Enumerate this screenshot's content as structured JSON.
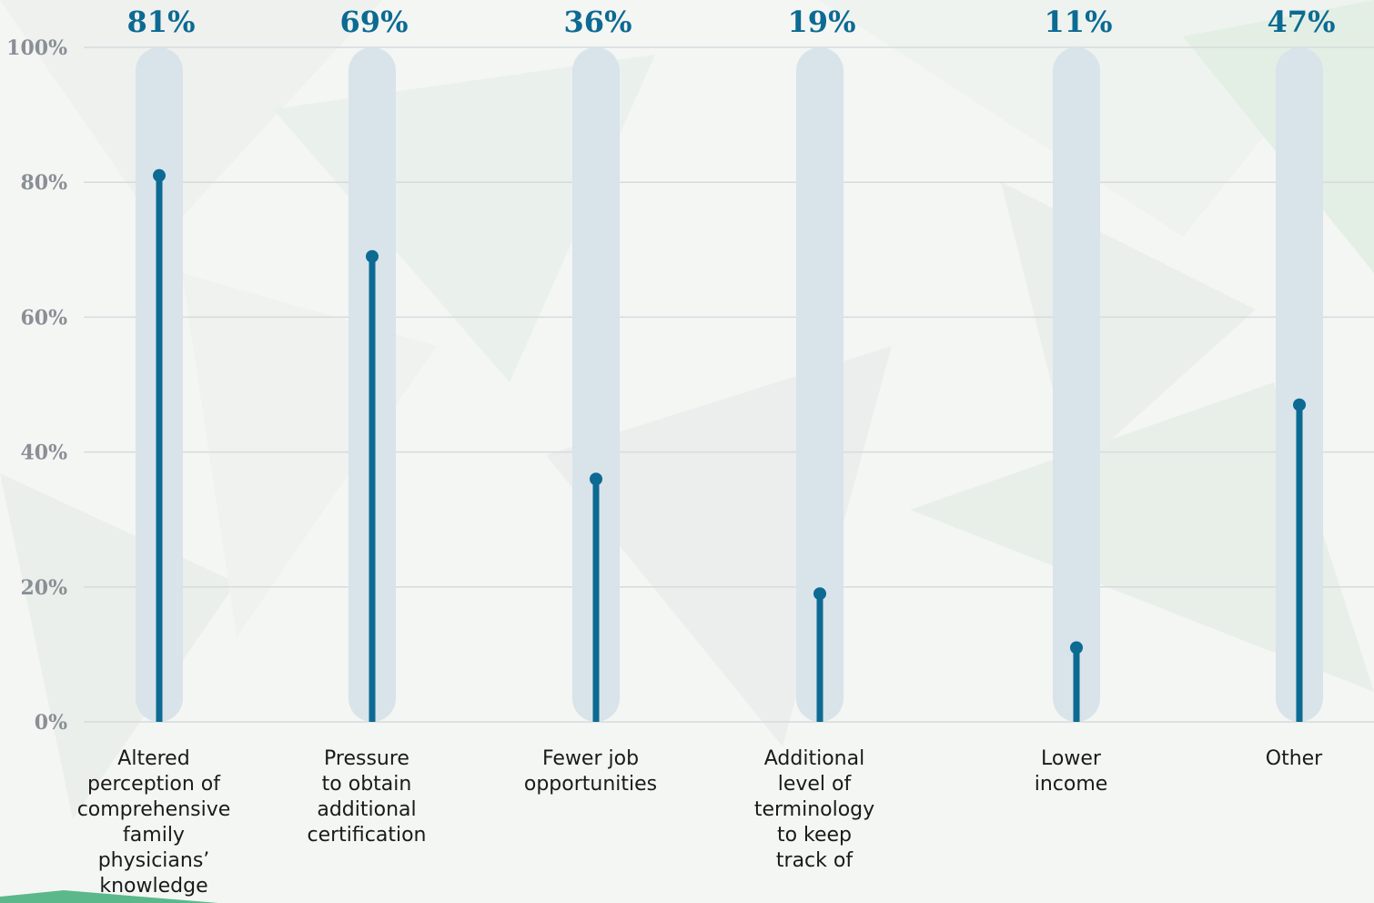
{
  "chart_data": {
    "type": "bar",
    "title": "",
    "xlabel": "",
    "ylabel": "",
    "ylim": [
      0,
      100
    ],
    "grid": true,
    "y_ticks": [
      "0%",
      "20%",
      "40%",
      "60%",
      "80%",
      "100%"
    ],
    "categories": [
      [
        "Altered",
        "perception of",
        "comprehensive",
        "family",
        "physicians’",
        "knowledge"
      ],
      [
        "Pressure",
        "to obtain",
        "additional",
        "certification"
      ],
      [
        "Fewer job",
        "opportunities"
      ],
      [
        "Additional",
        "level of",
        "terminology",
        "to keep",
        "track of"
      ],
      [
        "Lower",
        "income"
      ],
      [
        "Other"
      ]
    ],
    "values": [
      81,
      69,
      36,
      19,
      11,
      47
    ],
    "value_labels": [
      "81%",
      "69%",
      "36%",
      "19%",
      "11%",
      "47%"
    ]
  },
  "colors": {
    "track": "#d9e3ea",
    "bar": "#0c6a93",
    "grid": "#d7dadd",
    "tick_text": "#8a8f96"
  }
}
